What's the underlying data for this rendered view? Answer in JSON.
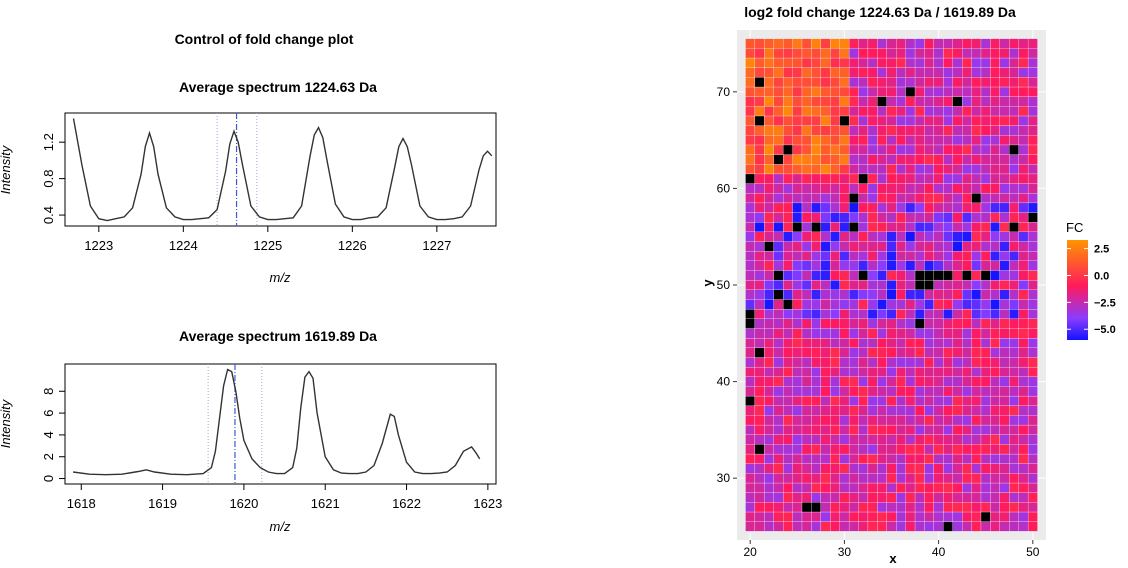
{
  "left_panel": {
    "title": "Control of fold change plot"
  },
  "colors": {
    "spectrum_line": "#333333",
    "marker_line": "#3b5bd6",
    "window_line": "#9aa6dd",
    "na_cell": "#000000",
    "scale_low": "#1414ff",
    "scale_mid1": "#8a3cff",
    "scale_mid2": "#ff1a5e",
    "scale_high": "#ff9500"
  },
  "chart_data": [
    {
      "type": "line",
      "title": "Average spectrum 1224.63 Da",
      "xlabel": "m/z",
      "ylabel": "Intensity",
      "xlim": [
        1222.6,
        1227.7
      ],
      "ylim": [
        0.28,
        1.52
      ],
      "xticks": [
        1223,
        1224,
        1225,
        1226,
        1227
      ],
      "yticks": [
        0.4,
        0.8,
        1.2
      ],
      "marker_mz": 1224.63,
      "window": [
        1224.4,
        1224.87
      ],
      "series": [
        {
          "x": [
            1222.7,
            1222.8,
            1222.9,
            1223.0,
            1223.1,
            1223.2,
            1223.3,
            1223.4,
            1223.5,
            1223.55,
            1223.6,
            1223.65,
            1223.7,
            1223.8,
            1223.9,
            1224.0,
            1224.1,
            1224.2,
            1224.3,
            1224.4,
            1224.5,
            1224.55,
            1224.6,
            1224.65,
            1224.7,
            1224.8,
            1224.9,
            1225.0,
            1225.1,
            1225.2,
            1225.3,
            1225.4,
            1225.5,
            1225.55,
            1225.6,
            1225.65,
            1225.7,
            1225.8,
            1225.9,
            1226.0,
            1226.1,
            1226.2,
            1226.3,
            1226.4,
            1226.5,
            1226.55,
            1226.6,
            1226.65,
            1226.7,
            1226.8,
            1226.9,
            1227.0,
            1227.1,
            1227.2,
            1227.3,
            1227.4,
            1227.5,
            1227.55,
            1227.6,
            1227.65
          ],
          "y": [
            1.46,
            0.95,
            0.5,
            0.36,
            0.34,
            0.36,
            0.38,
            0.48,
            0.85,
            1.15,
            1.3,
            1.15,
            0.85,
            0.48,
            0.38,
            0.35,
            0.35,
            0.36,
            0.37,
            0.46,
            0.88,
            1.18,
            1.32,
            1.2,
            0.95,
            0.5,
            0.38,
            0.35,
            0.35,
            0.36,
            0.37,
            0.5,
            1.05,
            1.28,
            1.36,
            1.25,
            1.0,
            0.52,
            0.38,
            0.35,
            0.35,
            0.37,
            0.38,
            0.48,
            0.92,
            1.15,
            1.24,
            1.15,
            0.95,
            0.5,
            0.38,
            0.35,
            0.35,
            0.36,
            0.38,
            0.5,
            0.9,
            1.05,
            1.1,
            1.05
          ]
        }
      ]
    },
    {
      "type": "line",
      "title": "Average spectrum 1619.89 Da",
      "xlabel": "m/z",
      "ylabel": "Intensity",
      "xlim": [
        1617.8,
        1623.1
      ],
      "ylim": [
        -0.5,
        10.5
      ],
      "xticks": [
        1618,
        1619,
        1620,
        1621,
        1622,
        1623
      ],
      "yticks": [
        0,
        2,
        4,
        6,
        8
      ],
      "marker_mz": 1619.89,
      "window": [
        1619.56,
        1620.22
      ],
      "series": [
        {
          "x": [
            1617.9,
            1618.1,
            1618.3,
            1618.5,
            1618.7,
            1618.8,
            1618.9,
            1619.1,
            1619.3,
            1619.5,
            1619.6,
            1619.65,
            1619.7,
            1619.75,
            1619.8,
            1619.85,
            1619.9,
            1619.95,
            1620.0,
            1620.1,
            1620.2,
            1620.3,
            1620.4,
            1620.5,
            1620.6,
            1620.65,
            1620.7,
            1620.75,
            1620.8,
            1620.85,
            1620.9,
            1621.0,
            1621.1,
            1621.2,
            1621.3,
            1621.4,
            1621.5,
            1621.6,
            1621.7,
            1621.8,
            1621.85,
            1621.9,
            1622.0,
            1622.1,
            1622.2,
            1622.3,
            1622.4,
            1622.5,
            1622.6,
            1622.7,
            1622.8,
            1622.85,
            1622.9
          ],
          "y": [
            0.6,
            0.4,
            0.35,
            0.4,
            0.65,
            0.8,
            0.6,
            0.4,
            0.35,
            0.45,
            1.0,
            2.5,
            5.5,
            8.5,
            10.0,
            9.8,
            8.0,
            5.5,
            3.5,
            1.8,
            1.0,
            0.6,
            0.45,
            0.45,
            1.0,
            2.8,
            6.5,
            9.3,
            9.8,
            9.2,
            6.0,
            2.0,
            0.8,
            0.5,
            0.45,
            0.45,
            0.6,
            1.2,
            3.2,
            5.9,
            5.7,
            4.0,
            1.5,
            0.6,
            0.45,
            0.45,
            0.5,
            0.6,
            1.2,
            2.5,
            2.9,
            2.4,
            1.8
          ]
        }
      ]
    },
    {
      "type": "heatmap",
      "title": "log2 fold change 1224.63 Da / 1619.89 Da",
      "xlabel": "x",
      "ylabel": "y",
      "x_range": [
        20,
        50
      ],
      "y_range": [
        25,
        75
      ],
      "xlim": [
        18.6,
        51.4
      ],
      "ylim": [
        23.6,
        76.4
      ],
      "xticks": [
        20,
        30,
        40,
        50
      ],
      "yticks": [
        30,
        40,
        50,
        60,
        70
      ],
      "legend": {
        "title": "FC",
        "ticks": [
          "2.5",
          "0.0",
          "−2.5",
          "−5.0"
        ],
        "tick_values": [
          2.5,
          0.0,
          -2.5,
          -5.0
        ],
        "min": -6.0,
        "max": 3.3
      },
      "field": {
        "seed": 7,
        "base": -2.0,
        "hot_zone": {
          "x_max": 30,
          "y_min": 62,
          "value": 1.3
        },
        "cool_band": {
          "y_min": 47,
          "y_max": 58,
          "value": -4.5
        },
        "noise": 1.6
      },
      "na_cells": [
        [
          20,
          61
        ],
        [
          21,
          71
        ],
        [
          21,
          67
        ],
        [
          23,
          63
        ],
        [
          24,
          64
        ],
        [
          30,
          67
        ],
        [
          34,
          69
        ],
        [
          37,
          70
        ],
        [
          42,
          69
        ],
        [
          32,
          61
        ],
        [
          31,
          59
        ],
        [
          44,
          59
        ],
        [
          48,
          64
        ],
        [
          50,
          57
        ],
        [
          25,
          56
        ],
        [
          27,
          56
        ],
        [
          31,
          56
        ],
        [
          48,
          56
        ],
        [
          22,
          54
        ],
        [
          23,
          51
        ],
        [
          23,
          49
        ],
        [
          24,
          48
        ],
        [
          32,
          51
        ],
        [
          38,
          51
        ],
        [
          39,
          51
        ],
        [
          40,
          51
        ],
        [
          41,
          51
        ],
        [
          38,
          50
        ],
        [
          39,
          50
        ],
        [
          43,
          51
        ],
        [
          45,
          51
        ],
        [
          20,
          47
        ],
        [
          20,
          46
        ],
        [
          38,
          46
        ],
        [
          21,
          43
        ],
        [
          20,
          38
        ],
        [
          21,
          33
        ],
        [
          26,
          27
        ],
        [
          27,
          27
        ],
        [
          45,
          26
        ],
        [
          41,
          25
        ]
      ]
    }
  ]
}
